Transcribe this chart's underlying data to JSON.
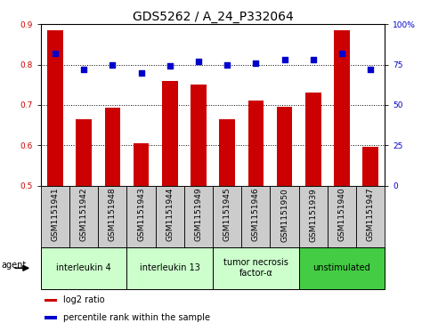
{
  "title": "GDS5262 / A_24_P332064",
  "samples": [
    "GSM1151941",
    "GSM1151942",
    "GSM1151948",
    "GSM1151943",
    "GSM1151944",
    "GSM1151949",
    "GSM1151945",
    "GSM1151946",
    "GSM1151950",
    "GSM1151939",
    "GSM1151940",
    "GSM1151947"
  ],
  "log2_ratio": [
    0.885,
    0.665,
    0.693,
    0.605,
    0.76,
    0.75,
    0.665,
    0.71,
    0.695,
    0.73,
    0.885,
    0.597
  ],
  "percentile_rank": [
    82,
    72,
    75,
    70,
    74,
    77,
    75,
    76,
    78,
    78,
    82,
    72
  ],
  "ylim_left": [
    0.5,
    0.9
  ],
  "ylim_right": [
    0,
    100
  ],
  "yticks_left": [
    0.5,
    0.6,
    0.7,
    0.8,
    0.9
  ],
  "yticks_right": [
    0,
    25,
    50,
    75,
    100
  ],
  "bar_color": "#cc0000",
  "dot_color": "#0000cc",
  "sample_cell_color": "#cccccc",
  "groups": [
    {
      "label": "interleukin 4",
      "start": 0,
      "end": 3,
      "color": "#ccffcc"
    },
    {
      "label": "interleukin 13",
      "start": 3,
      "end": 6,
      "color": "#ccffcc"
    },
    {
      "label": "tumor necrosis\nfactor-α",
      "start": 6,
      "end": 9,
      "color": "#ccffcc"
    },
    {
      "label": "unstimulated",
      "start": 9,
      "end": 12,
      "color": "#44cc44"
    }
  ],
  "agent_label": "agent",
  "legend_bar_label": "log2 ratio",
  "legend_dot_label": "percentile rank within the sample",
  "title_fontsize": 10,
  "tick_fontsize": 6.5,
  "label_fontsize": 7.5
}
